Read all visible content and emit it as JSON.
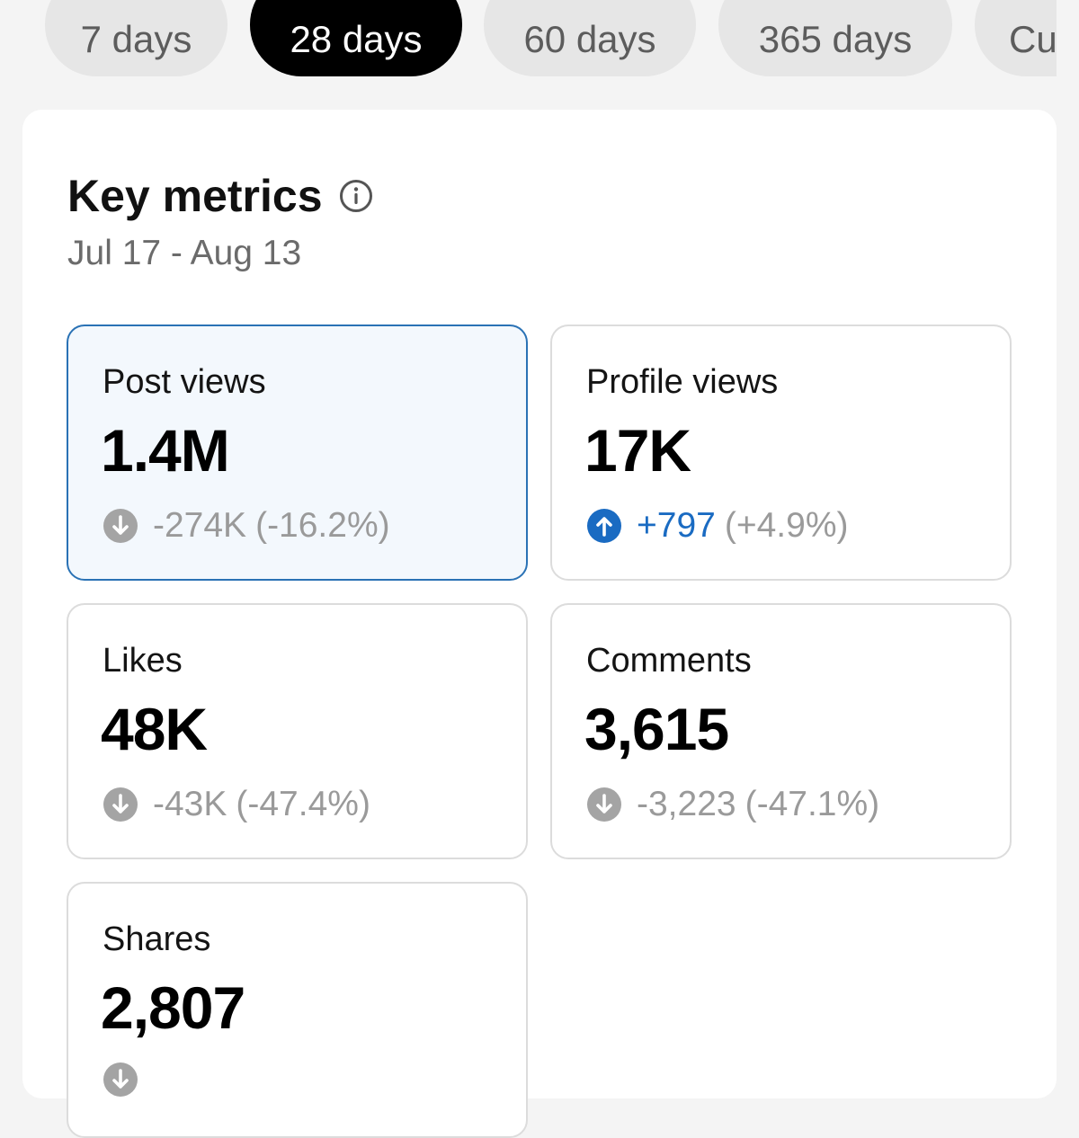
{
  "range_tabs": [
    {
      "label": "7 days",
      "active": false
    },
    {
      "label": "28 days",
      "active": true
    },
    {
      "label": "60 days",
      "active": false
    },
    {
      "label": "365 days",
      "active": false
    },
    {
      "label": "Cu",
      "active": false
    }
  ],
  "metrics_card": {
    "title": "Key metrics",
    "info_icon": "info-circle-icon",
    "date_range": "Jul 17 - Aug 13"
  },
  "metrics": [
    {
      "label": "Post views",
      "value": "1.4M",
      "delta": "-274K",
      "delta_pct": "(-16.2%)",
      "direction": "down",
      "selected": true
    },
    {
      "label": "Profile views",
      "value": "17K",
      "delta": "+797",
      "delta_pct": "(+4.9%)",
      "direction": "up",
      "selected": false
    },
    {
      "label": "Likes",
      "value": "48K",
      "delta": "-43K",
      "delta_pct": "(-47.4%)",
      "direction": "down",
      "selected": false
    },
    {
      "label": "Comments",
      "value": "3,615",
      "delta": "-3,223",
      "delta_pct": "(-47.1%)",
      "direction": "down",
      "selected": false
    },
    {
      "label": "Shares",
      "value": "2,807",
      "delta": "",
      "delta_pct": "",
      "direction": "down",
      "selected": false
    }
  ],
  "colors": {
    "active_tab_bg": "#000000",
    "inactive_tab_bg": "#e6e6e6",
    "selected_tile_bg": "#f3f8fd",
    "selected_tile_border": "#2a72b5",
    "positive_change": "#1a6bc2",
    "negative_change": "#9a9a9a"
  }
}
